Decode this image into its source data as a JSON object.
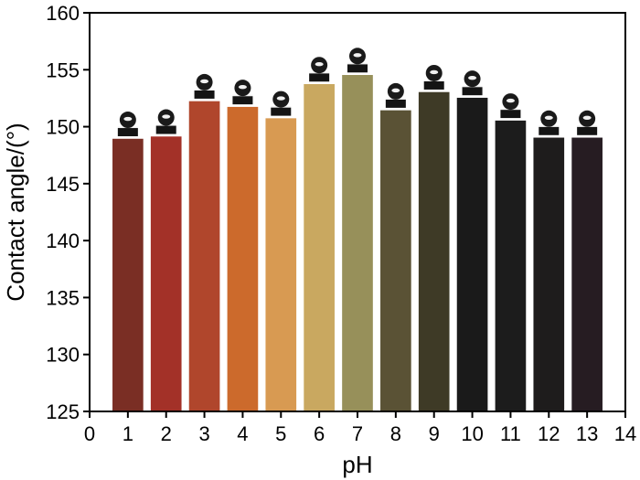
{
  "chart_data": {
    "type": "bar",
    "title": "",
    "xlabel": "pH",
    "ylabel": "Contact angle/(°)",
    "x": [
      1,
      2,
      3,
      4,
      5,
      6,
      7,
      8,
      9,
      10,
      11,
      12,
      13
    ],
    "values": [
      149.0,
      149.2,
      152.3,
      151.8,
      150.8,
      153.8,
      154.6,
      151.5,
      153.1,
      152.6,
      150.6,
      149.1,
      149.1
    ],
    "bar_colors": [
      "#7a2e24",
      "#a33128",
      "#b0462c",
      "#cc6a2c",
      "#d89a52",
      "#c9a860",
      "#97905a",
      "#5a5235",
      "#3e3a26",
      "#1a1a1a",
      "#1c1c1c",
      "#1e1c1c",
      "#261c22"
    ],
    "inset": "water-droplet-image",
    "xlim": [
      0,
      14
    ],
    "ylim": [
      125,
      160
    ],
    "xticks": [
      0,
      1,
      2,
      3,
      4,
      5,
      6,
      7,
      8,
      9,
      10,
      11,
      12,
      13,
      14
    ],
    "yticks": [
      125,
      130,
      135,
      140,
      145,
      150,
      155,
      160
    ],
    "grid": false,
    "legend": "none"
  }
}
